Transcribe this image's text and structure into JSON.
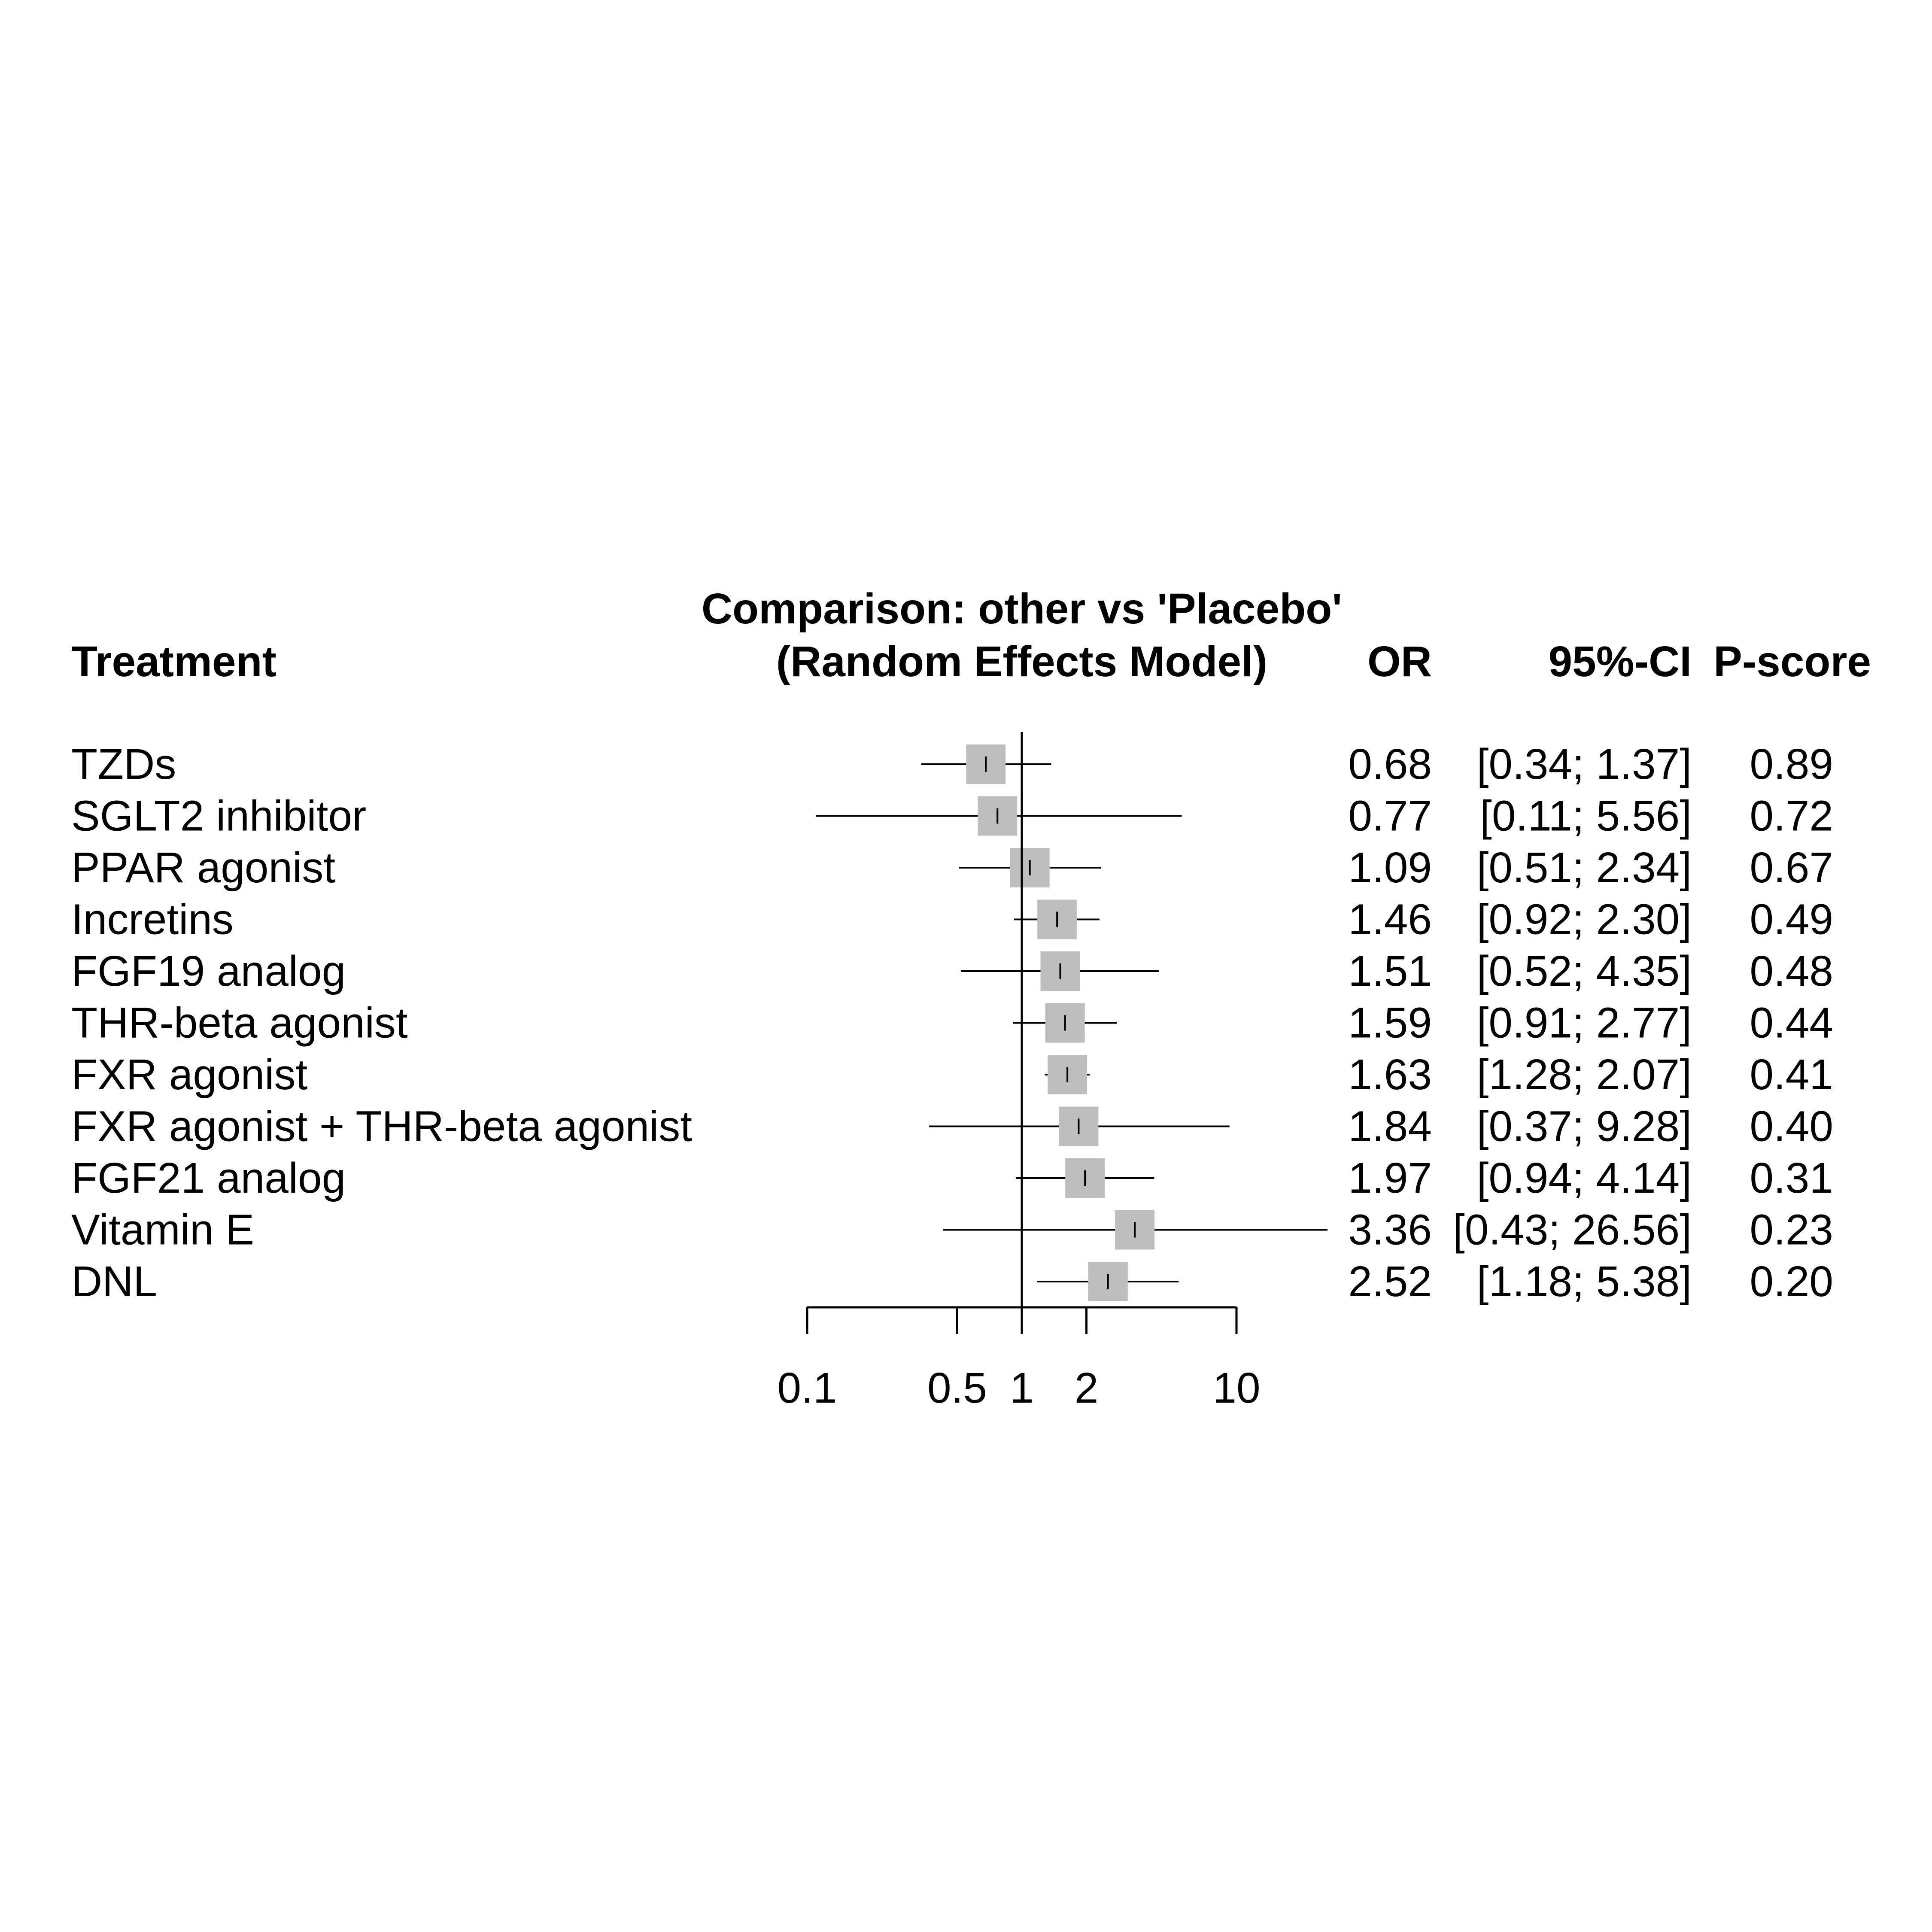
{
  "chart_data": {
    "type": "forest",
    "title_line1": "Comparison: other vs 'Placebo'",
    "title_line2": "(Random Effects Model)",
    "headers": {
      "treatment": "Treatment",
      "or": "OR",
      "ci": "95%-CI",
      "pscore": "P-score"
    },
    "x_scale": "log",
    "reference_line": 1,
    "x_ticks": [
      0.1,
      0.5,
      1,
      2,
      10
    ],
    "x_tick_labels": [
      "0.1",
      "0.5",
      "1",
      "2",
      "10"
    ],
    "marker_color": "#bebebe",
    "rows": [
      {
        "treatment": "TZDs",
        "or": 0.68,
        "lower": 0.34,
        "upper": 1.37,
        "or_label": "0.68",
        "ci_label": "[0.34;  1.37]",
        "pscore": "0.89"
      },
      {
        "treatment": "SGLT2 inhibitor",
        "or": 0.77,
        "lower": 0.11,
        "upper": 5.56,
        "or_label": "0.77",
        "ci_label": "[0.11;  5.56]",
        "pscore": "0.72"
      },
      {
        "treatment": "PPAR agonist",
        "or": 1.09,
        "lower": 0.51,
        "upper": 2.34,
        "or_label": "1.09",
        "ci_label": "[0.51;  2.34]",
        "pscore": "0.67"
      },
      {
        "treatment": "Incretins",
        "or": 1.46,
        "lower": 0.92,
        "upper": 2.3,
        "or_label": "1.46",
        "ci_label": "[0.92;  2.30]",
        "pscore": "0.49"
      },
      {
        "treatment": "FGF19 analog",
        "or": 1.51,
        "lower": 0.52,
        "upper": 4.35,
        "or_label": "1.51",
        "ci_label": "[0.52;  4.35]",
        "pscore": "0.48"
      },
      {
        "treatment": "THR-beta agonist",
        "or": 1.59,
        "lower": 0.91,
        "upper": 2.77,
        "or_label": "1.59",
        "ci_label": "[0.91;  2.77]",
        "pscore": "0.44"
      },
      {
        "treatment": "FXR agonist",
        "or": 1.63,
        "lower": 1.28,
        "upper": 2.07,
        "or_label": "1.63",
        "ci_label": "[1.28;  2.07]",
        "pscore": "0.41"
      },
      {
        "treatment": "FXR agonist + THR-beta agonist",
        "or": 1.84,
        "lower": 0.37,
        "upper": 9.28,
        "or_label": "1.84",
        "ci_label": "[0.37;  9.28]",
        "pscore": "0.40"
      },
      {
        "treatment": "FGF21 analog",
        "or": 1.97,
        "lower": 0.94,
        "upper": 4.14,
        "or_label": "1.97",
        "ci_label": "[0.94;  4.14]",
        "pscore": "0.31"
      },
      {
        "treatment": "Vitamin E",
        "or": 3.36,
        "lower": 0.43,
        "upper": 26.56,
        "or_label": "3.36",
        "ci_label": "[0.43; 26.56]",
        "pscore": "0.23"
      },
      {
        "treatment": "DNL",
        "or": 2.52,
        "lower": 1.18,
        "upper": 5.38,
        "or_label": "2.52",
        "ci_label": "[1.18;  5.38]",
        "pscore": "0.20"
      }
    ]
  }
}
